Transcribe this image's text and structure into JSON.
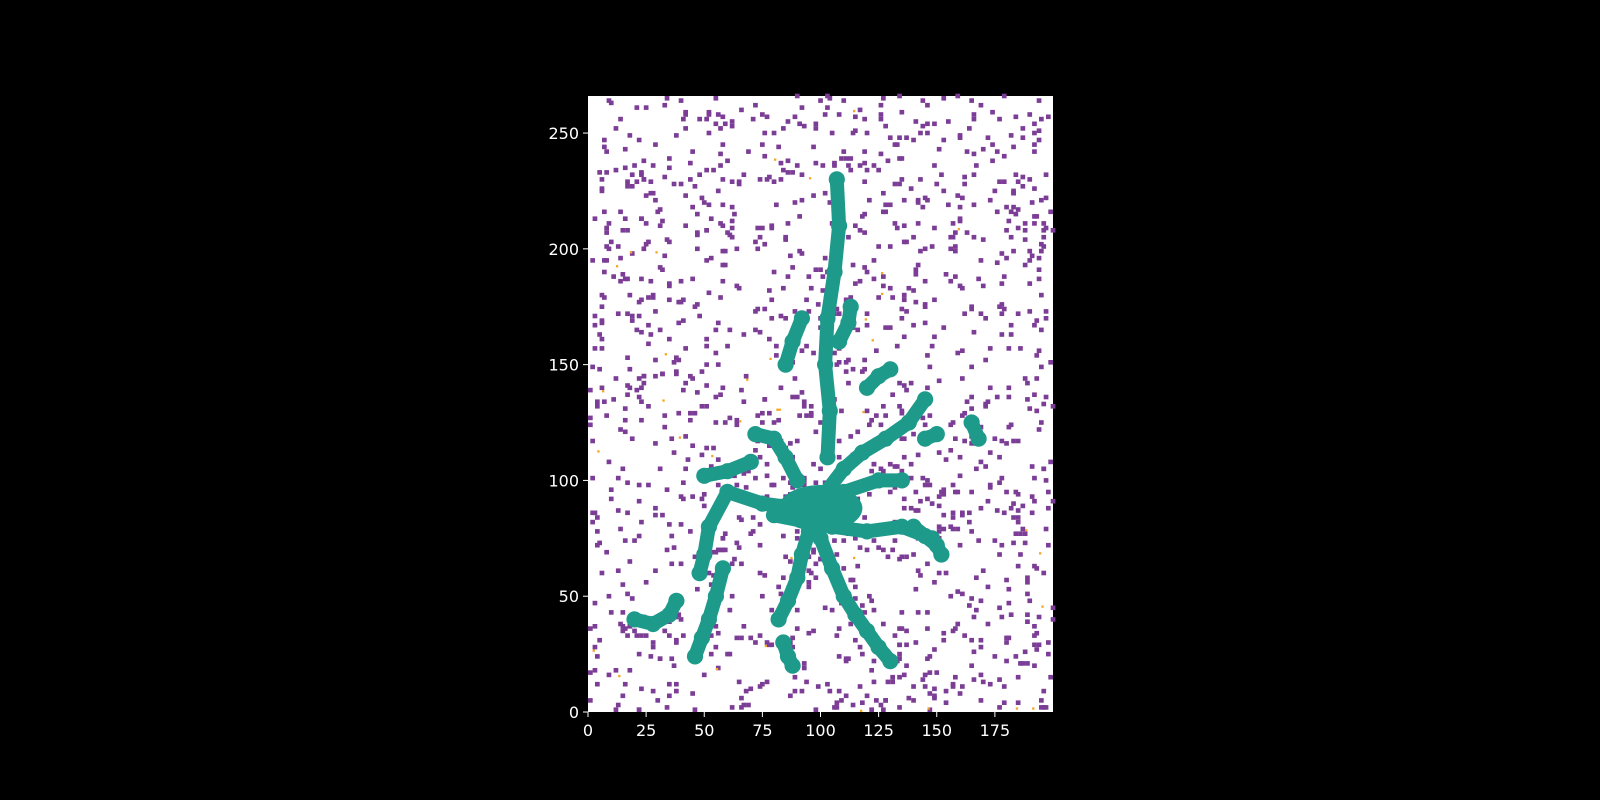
{
  "chart_data": {
    "type": "heatmap",
    "title": "",
    "xlabel": "",
    "ylabel": "",
    "xlim": [
      0,
      200
    ],
    "ylim": [
      0,
      266
    ],
    "x_ticks": [
      "0",
      "25",
      "50",
      "75",
      "100",
      "125",
      "150",
      "175"
    ],
    "y_ticks": [
      "0",
      "50",
      "100",
      "150",
      "200",
      "250"
    ],
    "x_tick_values": [
      0,
      25,
      50,
      75,
      100,
      125,
      150,
      175
    ],
    "y_tick_values": [
      0,
      50,
      100,
      150,
      200,
      250
    ],
    "grid": false,
    "colormap": "categorical (viridis/plasma-like)",
    "categories": [
      "background",
      "scattered pixels",
      "connected network",
      "sparse points"
    ],
    "category_colors": [
      "#ffffff",
      "#7b3d95",
      "#1e9a8a",
      "#f5a623"
    ],
    "regions": [
      {
        "category": "connected network",
        "description": "central branching mass",
        "x_center": 100,
        "y_center": 90
      },
      {
        "category": "connected network",
        "description": "vertical stem",
        "x_range": [
          100,
          112
        ],
        "y_range": [
          140,
          235
        ]
      },
      {
        "category": "connected network",
        "description": "lower-left arm",
        "x_range": [
          45,
          60
        ],
        "y_range": [
          20,
          60
        ]
      },
      {
        "category": "connected network",
        "description": "lower cluster",
        "x_range": [
          110,
          135
        ],
        "y_range": [
          15,
          45
        ]
      }
    ],
    "background_color": "#000000"
  }
}
